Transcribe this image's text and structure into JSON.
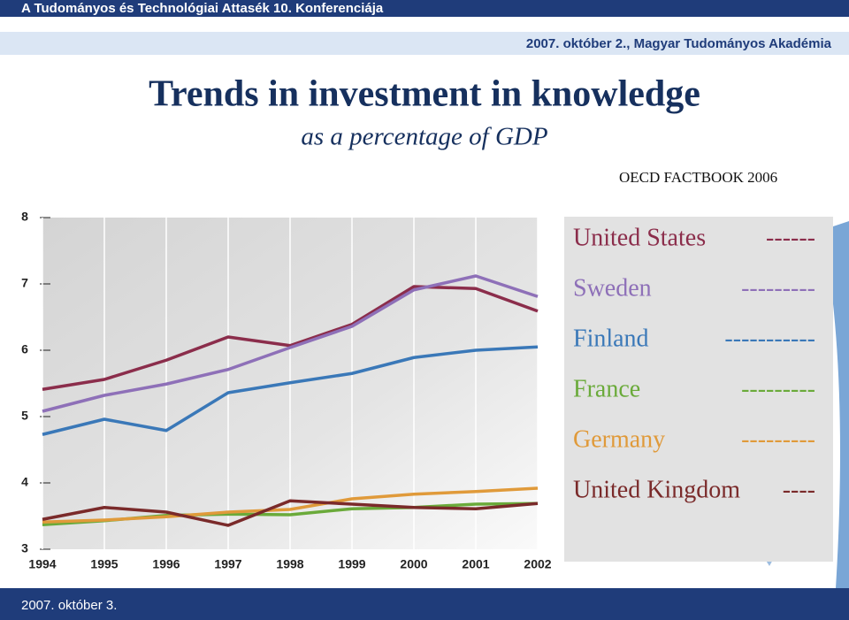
{
  "header": {
    "top": "A Tudományos és Technológiai Attasék 10. Konferenciája",
    "date_place": "2007. október 2., Magyar Tudományos Akadémia"
  },
  "chart_data": {
    "type": "line",
    "title": "Trends in investment in knowledge",
    "subtitle": "as a percentage of GDP",
    "source": "OECD FACTBOOK 2006",
    "x": [
      1994,
      1995,
      1996,
      1997,
      1998,
      1999,
      2000,
      2001,
      2002
    ],
    "xlim": [
      1994,
      2002
    ],
    "ylim": [
      3,
      8
    ],
    "yticks": [
      3,
      4,
      5,
      6,
      7,
      8
    ],
    "grid": true,
    "series": [
      {
        "name": "United States",
        "legend_marker": "------",
        "color": "#8b2d4b",
        "values": [
          5.41,
          5.56,
          5.85,
          6.2,
          6.07,
          6.39,
          6.96,
          6.93,
          6.59
        ]
      },
      {
        "name": "Sweden",
        "legend_marker": "---------",
        "color": "#8e70b8",
        "values": [
          5.08,
          5.32,
          5.49,
          5.71,
          6.04,
          6.36,
          6.91,
          7.12,
          6.81
        ]
      },
      {
        "name": "Finland",
        "legend_marker": "-----------",
        "color": "#3a78b8",
        "values": [
          4.73,
          4.96,
          4.79,
          5.36,
          5.51,
          5.65,
          5.89,
          6.0,
          6.05
        ]
      },
      {
        "name": "France",
        "legend_marker": "---------",
        "color": "#6aaa3a",
        "values": [
          3.37,
          3.43,
          3.51,
          3.53,
          3.52,
          3.61,
          3.63,
          3.68,
          3.69
        ]
      },
      {
        "name": "Germany",
        "legend_marker": "---------",
        "color": "#e09a3a",
        "values": [
          3.41,
          3.44,
          3.49,
          3.56,
          3.6,
          3.76,
          3.83,
          3.87,
          3.92
        ]
      },
      {
        "name": "United Kingdom",
        "legend_marker": "----",
        "color": "#7a2a2a",
        "values": [
          3.45,
          3.63,
          3.56,
          3.36,
          3.73,
          3.68,
          3.63,
          3.61,
          3.69
        ]
      }
    ]
  },
  "footer": {
    "date": "2007. október 3."
  }
}
